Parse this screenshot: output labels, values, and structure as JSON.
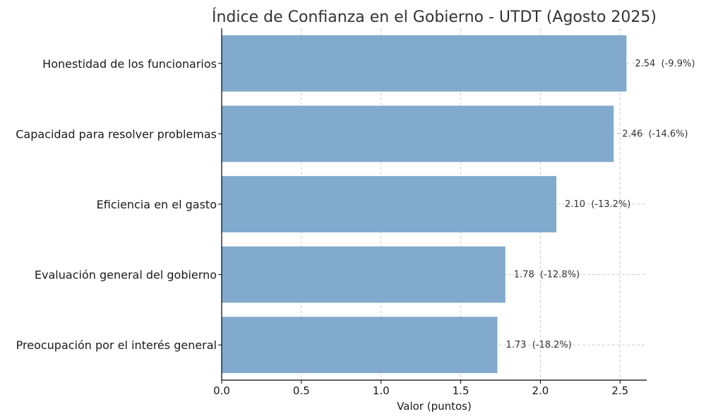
{
  "chart_data": {
    "type": "bar",
    "orientation": "horizontal",
    "title": "Índice de Confianza en el Gobierno - UTDT (Agosto 2025)",
    "xlabel": "Valor (puntos)",
    "ylabel": "",
    "categories": [
      "Honestidad de los funcionarios",
      "Capacidad para resolver problemas",
      "Eficiencia en el gasto",
      "Evaluación general del gobierno",
      "Preocupación por el interés general"
    ],
    "values": [
      2.54,
      2.46,
      2.1,
      1.78,
      1.73
    ],
    "data_labels": [
      "2.54  (-9.9%)",
      "2.46  (-14.6%)",
      "2.10  (-13.2%)",
      "1.78  (-12.8%)",
      "1.73  (-18.2%)"
    ],
    "xlim": [
      0,
      2.667
    ],
    "xticks": [
      0.0,
      0.5,
      1.0,
      1.5,
      2.0,
      2.5
    ],
    "xtick_labels": [
      "0.0",
      "0.5",
      "1.0",
      "1.5",
      "2.0",
      "2.5"
    ],
    "grid": true,
    "bar_color": "#7ea8cc"
  }
}
